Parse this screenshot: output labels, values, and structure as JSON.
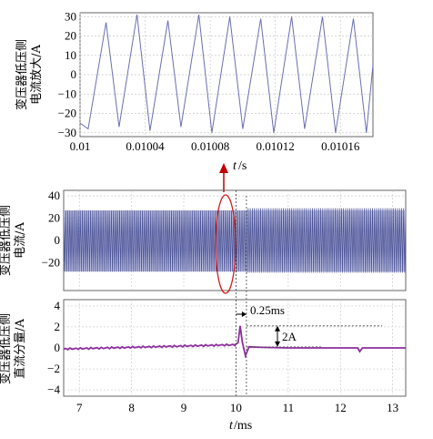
{
  "chart_data": [
    {
      "type": "line",
      "panel": "top",
      "ylabel_lines": [
        "变压器低压侧",
        "电流放大/A"
      ],
      "xlabel": "/s",
      "xlabel_var": "t",
      "xlim": [
        0.01,
        0.01018
      ],
      "ylim": [
        -32,
        32
      ],
      "xticks": [
        "0.01",
        "0.01004",
        "0.01008",
        "0.01012",
        "0.01016"
      ],
      "xtick_values": [
        0.01,
        0.01004,
        0.01008,
        0.01012,
        0.01016
      ],
      "yticks": [
        30,
        20,
        10,
        0,
        -10,
        -20,
        -30
      ],
      "grid": true,
      "series": [
        {
          "color": "#6a6fb0",
          "x": [
            0.01,
            0.010005,
            0.010016,
            0.010024,
            0.010035,
            0.010043,
            0.010054,
            0.010062,
            0.010073,
            0.010081,
            0.010092,
            0.0101,
            0.010111,
            0.010119,
            0.01013,
            0.010138,
            0.010149,
            0.010157,
            0.010168,
            0.010176,
            0.01018
          ],
          "y": [
            -25,
            -28,
            27,
            -27,
            31,
            -29,
            28,
            -27,
            31,
            -30,
            30,
            -28,
            29,
            -30,
            30,
            -28,
            30,
            -30,
            29,
            -30,
            5
          ]
        }
      ]
    },
    {
      "type": "line",
      "panel": "middle",
      "ylabel_lines": [
        "变压器低压侧",
        "电流/A"
      ],
      "xlim": [
        6.7,
        13.25
      ],
      "ylim": [
        -45,
        45
      ],
      "yticks": [
        40,
        20,
        0,
        -20
      ],
      "grid": true,
      "series": [
        {
          "color": "#4a5296",
          "description_envelope_upper": 27,
          "description_envelope_lower": -28,
          "x": [
            6.7,
            10.2,
            10.21,
            13.25
          ],
          "y_upper": [
            27,
            27,
            29,
            29
          ],
          "y_lower": [
            -28,
            -28,
            -29,
            -29
          ]
        }
      ]
    },
    {
      "type": "line",
      "panel": "bottom",
      "ylabel_lines": [
        "变压器低压侧",
        "直流分量/A"
      ],
      "xlabel": "/ms",
      "xlabel_var": "t",
      "xlim": [
        6.7,
        13.25
      ],
      "ylim": [
        -4.6,
        4.6
      ],
      "xticks": [
        7,
        8,
        9,
        10,
        11,
        12,
        13
      ],
      "yticks": [
        4,
        2,
        0,
        -2,
        -4
      ],
      "grid": true,
      "series": [
        {
          "color": "#8e2f9e",
          "x": [
            6.7,
            7.5,
            8.5,
            9.5,
            9.98,
            10.04,
            10.08,
            10.12,
            10.18,
            10.25,
            10.5,
            11.0,
            12.0,
            12.33,
            12.37,
            12.42,
            13.25
          ],
          "y": [
            -0.1,
            0.05,
            0.15,
            0.25,
            0.3,
            0.5,
            2.1,
            0.6,
            -0.75,
            0.1,
            0.05,
            0.0,
            0.0,
            0.0,
            -0.35,
            0.0,
            0.0
          ]
        }
      ]
    }
  ],
  "annotations": {
    "interval_label": "0.25ms",
    "step_label": "2A",
    "event_x_ms": 10.0,
    "event_x2_ms": 10.2
  }
}
